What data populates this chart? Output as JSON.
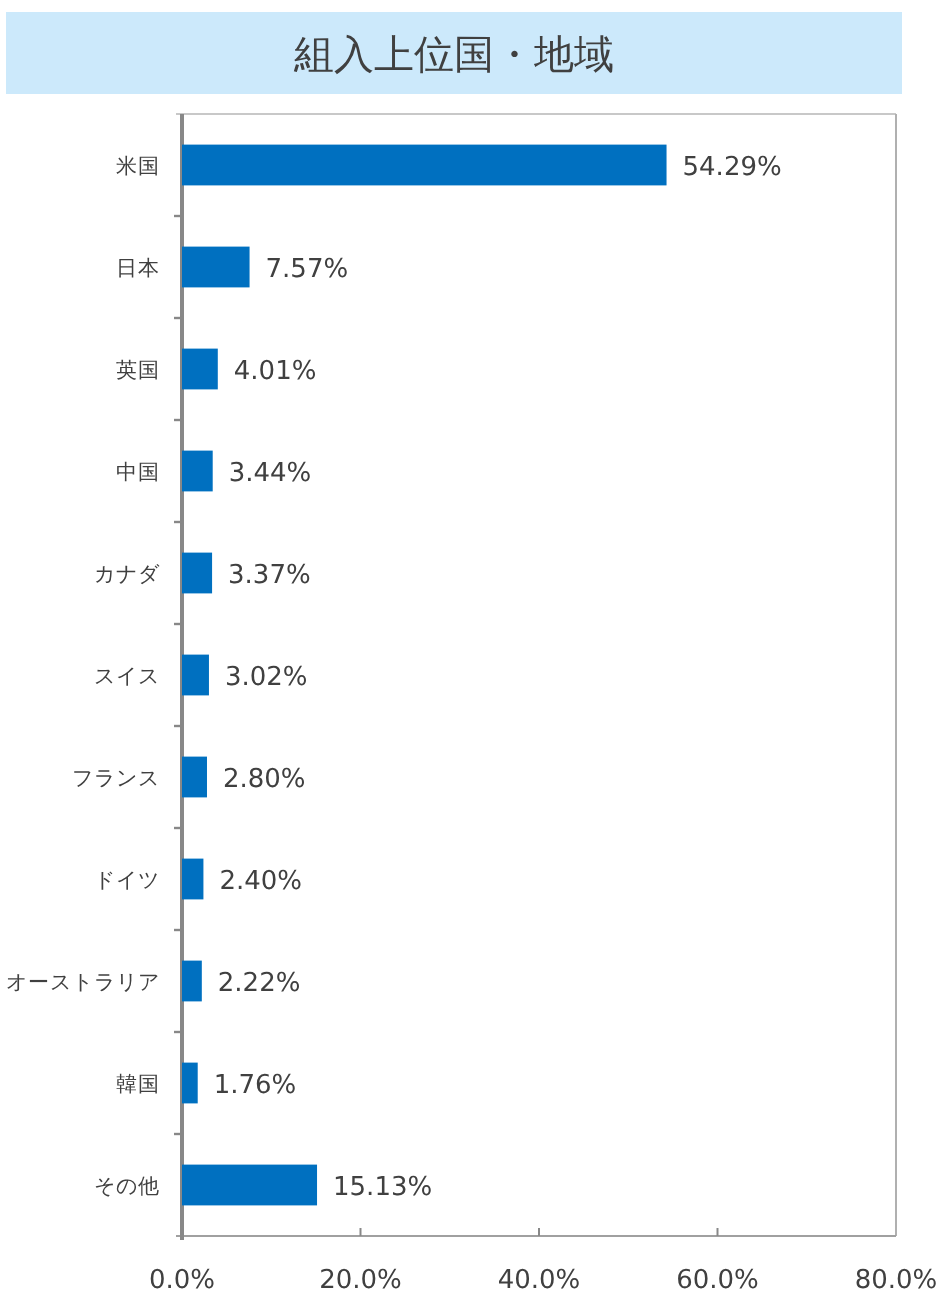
{
  "chart_data": {
    "type": "bar",
    "orientation": "horizontal",
    "title": "組入上位国・地域",
    "categories": [
      "米国",
      "日本",
      "英国",
      "中国",
      "カナダ",
      "スイス",
      "フランス",
      "ドイツ",
      "オーストラリア",
      "韓国",
      "その他"
    ],
    "values": [
      54.29,
      7.57,
      4.01,
      3.44,
      3.37,
      3.02,
      2.8,
      2.4,
      2.22,
      1.76,
      15.13
    ],
    "value_labels": [
      "54.29%",
      "7.57%",
      "4.01%",
      "3.44%",
      "3.37%",
      "3.02%",
      "2.80%",
      "2.40%",
      "2.22%",
      "1.76%",
      "15.13%"
    ],
    "color": "#0070c0",
    "xlim": [
      0,
      80
    ],
    "xticks": [
      {
        "value": 0,
        "label": "0.0%"
      },
      {
        "value": 20,
        "label": "20.0%"
      },
      {
        "value": 40,
        "label": "40.0%"
      },
      {
        "value": 60,
        "label": "60.0%"
      },
      {
        "value": 80,
        "label": "80.0%"
      }
    ]
  }
}
